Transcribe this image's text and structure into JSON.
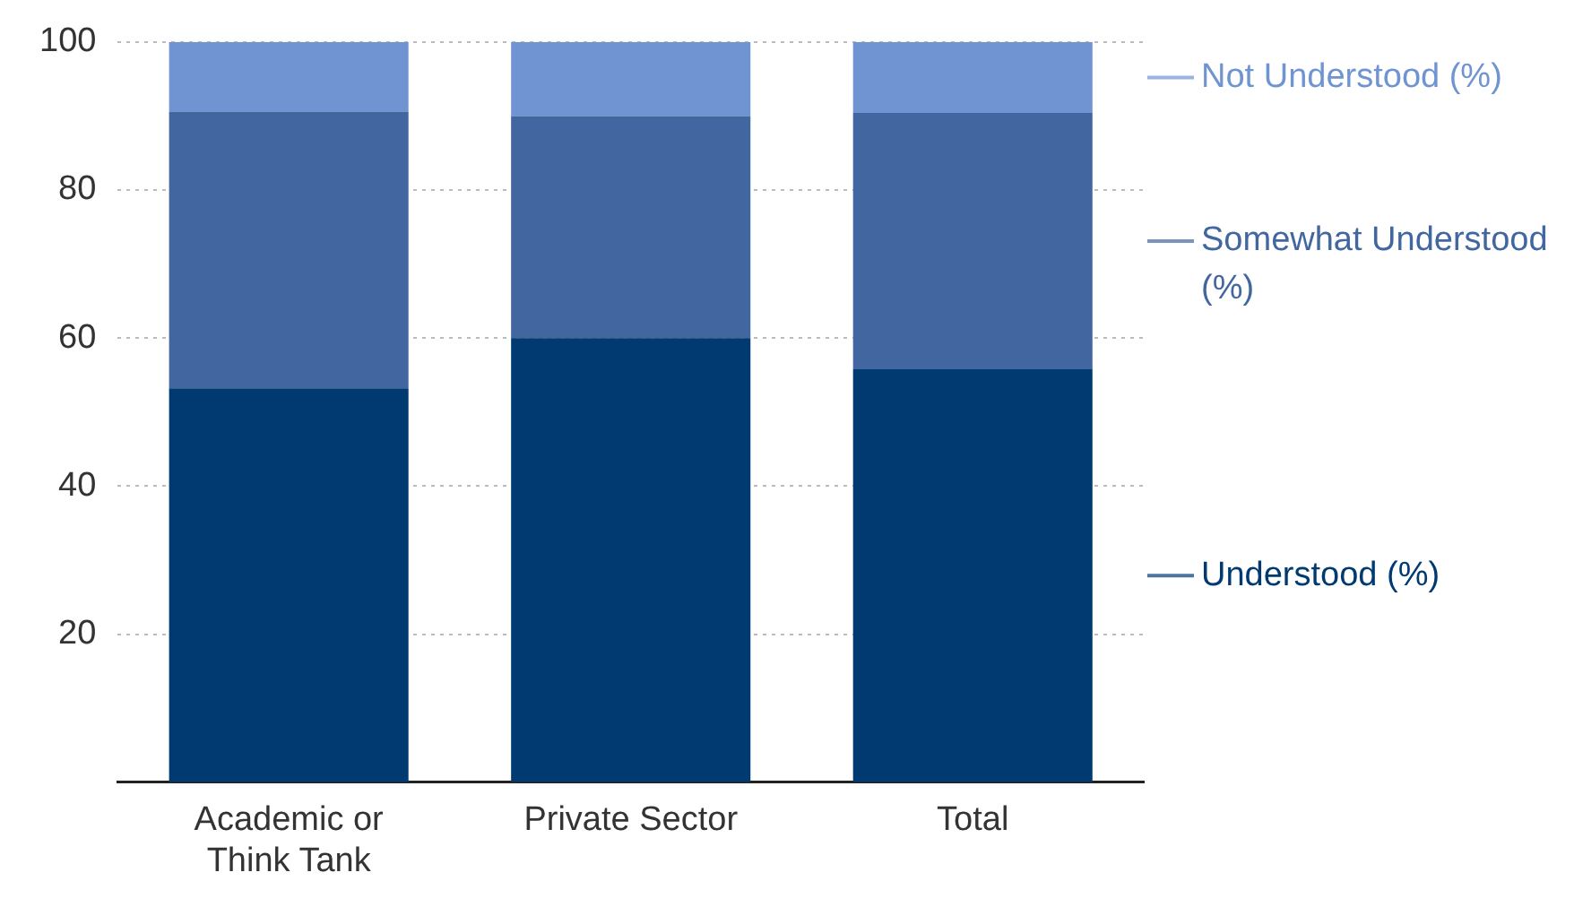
{
  "chart_data": {
    "type": "bar",
    "stacked": true,
    "categories": [
      "Academic or Think Tank",
      "Private Sector",
      "Total"
    ],
    "series": [
      {
        "name": "Understood (%)",
        "color": "#003a70",
        "values": [
          53.2,
          60,
          55.8
        ]
      },
      {
        "name": "Somewhat Understood (%)",
        "color": "#4166a0",
        "values": [
          37.4,
          30,
          34.6
        ]
      },
      {
        "name": "Not Understood (%)",
        "color": "#7094d2",
        "values": [
          9.4,
          10,
          9.6
        ]
      }
    ],
    "ylim": [
      0,
      100
    ],
    "yticks": [
      20,
      40,
      60,
      80,
      100
    ],
    "grid": "y",
    "legend": "right"
  }
}
